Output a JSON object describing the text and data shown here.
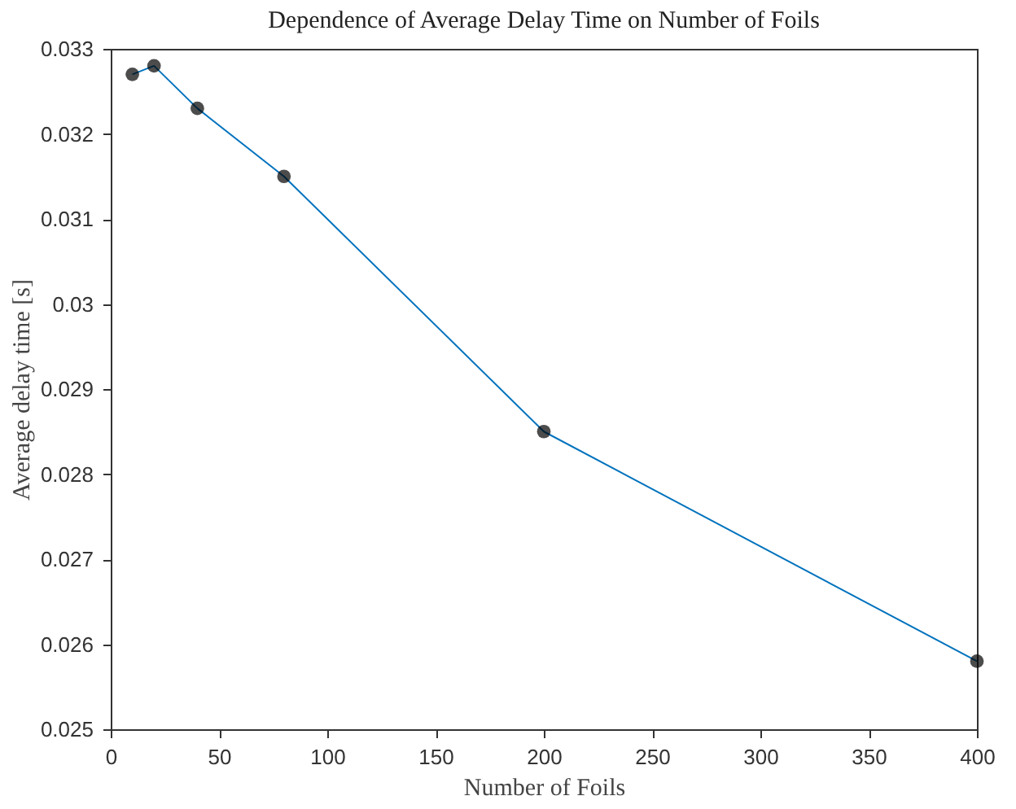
{
  "chart_data": {
    "type": "line",
    "title": "Dependence of Average Delay Time on Number of Foils",
    "xlabel": "Number of Foils",
    "ylabel": "Average delay time [s]",
    "x": [
      10,
      20,
      40,
      80,
      200,
      400
    ],
    "series": [
      {
        "color": "#0072bd",
        "values": [
          0.0327,
          0.0328,
          0.0323,
          0.0315,
          0.0285,
          0.0258
        ]
      }
    ],
    "xlim": [
      0,
      400
    ],
    "xticks": [
      0,
      50,
      100,
      150,
      200,
      250,
      300,
      350,
      400
    ],
    "ylim": [
      0.025,
      0.033
    ],
    "yticks": [
      0.025,
      0.026,
      0.027,
      0.028,
      0.029,
      0.03,
      0.031,
      0.032,
      0.033
    ],
    "grid": false,
    "marker": "circle",
    "line_style": "solid"
  }
}
